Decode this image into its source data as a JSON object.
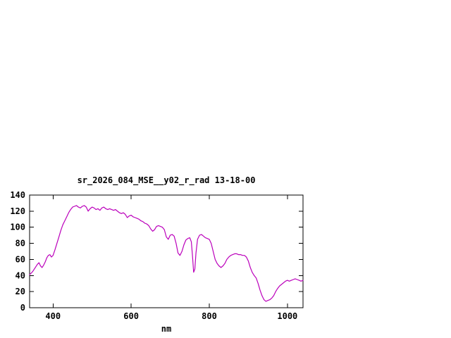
{
  "page": {
    "background_color": "#ffffff"
  },
  "chart_data": {
    "type": "line",
    "title": "sr_2026_084_MSE__y02_r_rad 13-18-00",
    "xlabel": "nm",
    "ylabel": "",
    "xlim": [
      340,
      1040
    ],
    "ylim": [
      0,
      140
    ],
    "x_ticks": [
      400,
      600,
      800,
      1000
    ],
    "y_ticks": [
      0,
      20,
      40,
      60,
      80,
      100,
      120,
      140
    ],
    "grid": false,
    "legend_position": "none",
    "line_color": "#bb00bb",
    "axis_color": "#000000",
    "series": [
      {
        "name": "sr_2026_084_MSE__y02_r_rad",
        "points": [
          [
            340,
            41
          ],
          [
            344,
            43
          ],
          [
            348,
            45
          ],
          [
            352,
            48
          ],
          [
            356,
            51
          ],
          [
            360,
            54
          ],
          [
            364,
            56
          ],
          [
            368,
            52
          ],
          [
            372,
            50
          ],
          [
            376,
            53
          ],
          [
            380,
            57
          ],
          [
            384,
            62
          ],
          [
            388,
            65
          ],
          [
            392,
            66
          ],
          [
            396,
            63
          ],
          [
            400,
            65
          ],
          [
            405,
            72
          ],
          [
            410,
            80
          ],
          [
            415,
            88
          ],
          [
            420,
            96
          ],
          [
            425,
            103
          ],
          [
            430,
            108
          ],
          [
            435,
            113
          ],
          [
            440,
            118
          ],
          [
            445,
            122
          ],
          [
            450,
            125
          ],
          [
            455,
            126
          ],
          [
            460,
            127
          ],
          [
            465,
            125
          ],
          [
            470,
            124
          ],
          [
            475,
            126
          ],
          [
            480,
            127
          ],
          [
            485,
            125
          ],
          [
            490,
            120
          ],
          [
            495,
            123
          ],
          [
            500,
            125
          ],
          [
            505,
            124
          ],
          [
            510,
            122
          ],
          [
            515,
            123
          ],
          [
            520,
            121
          ],
          [
            525,
            124
          ],
          [
            530,
            125
          ],
          [
            535,
            123
          ],
          [
            540,
            122
          ],
          [
            545,
            123
          ],
          [
            550,
            122
          ],
          [
            555,
            121
          ],
          [
            560,
            122
          ],
          [
            565,
            120
          ],
          [
            570,
            118
          ],
          [
            575,
            117
          ],
          [
            580,
            118
          ],
          [
            585,
            116
          ],
          [
            590,
            112
          ],
          [
            595,
            114
          ],
          [
            600,
            115
          ],
          [
            605,
            113
          ],
          [
            610,
            112
          ],
          [
            615,
            111
          ],
          [
            620,
            110
          ],
          [
            625,
            108
          ],
          [
            630,
            107
          ],
          [
            635,
            105
          ],
          [
            640,
            104
          ],
          [
            645,
            102
          ],
          [
            650,
            98
          ],
          [
            655,
            95
          ],
          [
            660,
            97
          ],
          [
            665,
            101
          ],
          [
            670,
            102
          ],
          [
            675,
            101
          ],
          [
            680,
            100
          ],
          [
            685,
            97
          ],
          [
            690,
            88
          ],
          [
            695,
            85
          ],
          [
            700,
            90
          ],
          [
            705,
            91
          ],
          [
            710,
            89
          ],
          [
            715,
            80
          ],
          [
            720,
            68
          ],
          [
            725,
            65
          ],
          [
            730,
            70
          ],
          [
            735,
            78
          ],
          [
            740,
            84
          ],
          [
            745,
            86
          ],
          [
            750,
            87
          ],
          [
            754,
            82
          ],
          [
            757,
            65
          ],
          [
            760,
            44
          ],
          [
            763,
            48
          ],
          [
            766,
            68
          ],
          [
            770,
            85
          ],
          [
            775,
            90
          ],
          [
            780,
            91
          ],
          [
            785,
            89
          ],
          [
            790,
            87
          ],
          [
            795,
            86
          ],
          [
            800,
            85
          ],
          [
            805,
            80
          ],
          [
            810,
            70
          ],
          [
            815,
            60
          ],
          [
            820,
            55
          ],
          [
            825,
            52
          ],
          [
            830,
            50
          ],
          [
            835,
            52
          ],
          [
            840,
            55
          ],
          [
            845,
            60
          ],
          [
            850,
            63
          ],
          [
            855,
            65
          ],
          [
            860,
            66
          ],
          [
            865,
            67
          ],
          [
            870,
            67
          ],
          [
            875,
            66
          ],
          [
            880,
            66
          ],
          [
            885,
            65
          ],
          [
            890,
            65
          ],
          [
            895,
            63
          ],
          [
            900,
            58
          ],
          [
            905,
            50
          ],
          [
            910,
            44
          ],
          [
            915,
            40
          ],
          [
            920,
            37
          ],
          [
            925,
            30
          ],
          [
            930,
            22
          ],
          [
            935,
            15
          ],
          [
            940,
            10
          ],
          [
            945,
            8
          ],
          [
            950,
            9
          ],
          [
            955,
            10
          ],
          [
            960,
            12
          ],
          [
            965,
            15
          ],
          [
            970,
            20
          ],
          [
            975,
            24
          ],
          [
            980,
            27
          ],
          [
            985,
            29
          ],
          [
            990,
            31
          ],
          [
            995,
            33
          ],
          [
            1000,
            34
          ],
          [
            1005,
            33
          ],
          [
            1010,
            34
          ],
          [
            1015,
            35
          ],
          [
            1020,
            36
          ],
          [
            1025,
            35
          ],
          [
            1030,
            34
          ],
          [
            1035,
            33
          ],
          [
            1040,
            34
          ]
        ]
      }
    ]
  }
}
